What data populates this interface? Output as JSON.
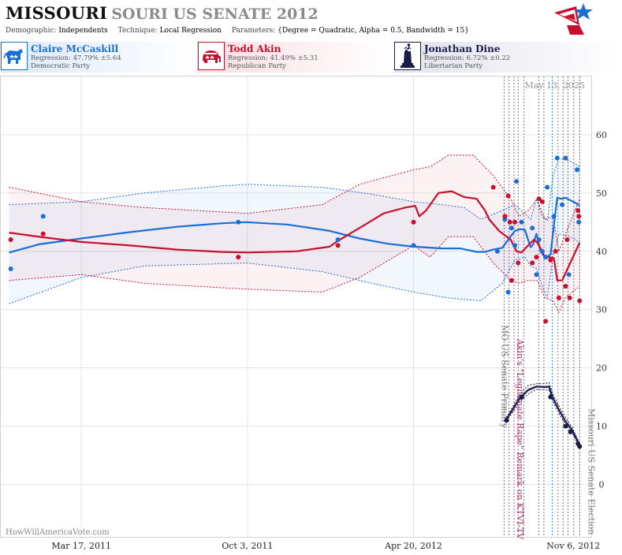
{
  "header": {
    "title_main": "MISSOURI",
    "title_rest": "SOURI US SENATE 2012",
    "demographic_label": "Demographic:",
    "demographic_value": "Independents",
    "technique_label": "Technique:",
    "technique_value": "Local Regression",
    "parameters_label": "Parameters:",
    "parameters_value": "{Degree = Quadratic, Alpha = 0.5, Bandwidth = 15}"
  },
  "candidates": [
    {
      "name": "Claire McCaskill",
      "regression": "Regression: 47.79% ±5.64",
      "party": "Democratic Party",
      "color": "#1a6fd6",
      "icon": "donkey-icon"
    },
    {
      "name": "Todd Akin",
      "regression": "Regression: 41.49% ±5.31",
      "party": "Republican Party",
      "color": "#c8102e",
      "icon": "elephant-icon"
    },
    {
      "name": "Jonathan Dine",
      "regression": "Regression: 6.72% ±0.22",
      "party": "Libertarian Party",
      "color": "#1b1b4a",
      "icon": "liberty-statue-icon"
    }
  ],
  "watermark": "HowWillAmericaVote.com",
  "date_stamp": "May 13, 2025",
  "chart_data": {
    "type": "line",
    "x_axis_type": "date",
    "xlim": [
      "2010-12-10",
      "2012-11-20"
    ],
    "ylim": [
      -9,
      70
    ],
    "y_ticks": [
      0,
      10,
      20,
      30,
      40,
      50,
      60
    ],
    "x_ticks": [
      {
        "date": "2011-03-17",
        "label": "Mar 17, 2011"
      },
      {
        "date": "2011-10-03",
        "label": "Oct 3, 2011"
      },
      {
        "date": "2012-04-20",
        "label": "Apr 20, 2012"
      },
      {
        "date": "2012-11-06",
        "label": "Nov 6, 2012"
      }
    ],
    "grid": true,
    "events": [
      {
        "date": "2012-08-07",
        "label": "MO US Senate Primary",
        "color": "#777777"
      },
      {
        "date": "2012-08-19",
        "label": "Akin's \"Legitimate Rape\" Remark on KTVI-TV",
        "color": "#b0306a"
      },
      {
        "date": "2012-11-06",
        "label": "Missouri US Senate Election",
        "color": "#777777"
      }
    ],
    "series": [
      {
        "name": "Claire McCaskill",
        "color": "#1a6fd6",
        "trend": [
          [
            "2010-12-20",
            39.8
          ],
          [
            "2011-01-25",
            41.2
          ],
          [
            "2011-03-17",
            42.2
          ],
          [
            "2011-05-15",
            43.3
          ],
          [
            "2011-07-10",
            44.2
          ],
          [
            "2011-09-01",
            44.8
          ],
          [
            "2011-10-01",
            45.0
          ],
          [
            "2011-11-20",
            44.6
          ],
          [
            "2012-01-10",
            43.5
          ],
          [
            "2012-02-15",
            42.2
          ],
          [
            "2012-03-20",
            41.3
          ],
          [
            "2012-04-20",
            40.8
          ],
          [
            "2012-05-25",
            40.5
          ],
          [
            "2012-06-15",
            40.5
          ],
          [
            "2012-06-25",
            40.2
          ],
          [
            "2012-07-05",
            39.9
          ],
          [
            "2012-07-15",
            39.9
          ],
          [
            "2012-07-25",
            40.3
          ],
          [
            "2012-08-05",
            40.6
          ],
          [
            "2012-08-12",
            42.0
          ],
          [
            "2012-08-20",
            43.5
          ],
          [
            "2012-08-26",
            43.8
          ],
          [
            "2012-09-01",
            43.7
          ],
          [
            "2012-09-05",
            42.0
          ],
          [
            "2012-09-08",
            40.7
          ],
          [
            "2012-09-11",
            41.2
          ],
          [
            "2012-09-15",
            43.0
          ],
          [
            "2012-09-20",
            40.0
          ],
          [
            "2012-09-26",
            38.8
          ],
          [
            "2012-10-02",
            39.5
          ],
          [
            "2012-10-07",
            45.6
          ],
          [
            "2012-10-10",
            49.2
          ],
          [
            "2012-10-15",
            49.0
          ],
          [
            "2012-10-20",
            49.2
          ],
          [
            "2012-10-25",
            48.8
          ],
          [
            "2012-11-01",
            48.3
          ],
          [
            "2012-11-06",
            47.8
          ]
        ],
        "upper": [
          [
            "2010-12-20",
            48.0
          ],
          [
            "2011-03-17",
            48.5
          ],
          [
            "2011-06-01",
            50.0
          ],
          [
            "2011-09-01",
            51.2
          ],
          [
            "2011-10-03",
            51.5
          ],
          [
            "2012-01-01",
            51.0
          ],
          [
            "2012-03-01",
            49.8
          ],
          [
            "2012-04-20",
            48.5
          ],
          [
            "2012-05-25",
            48.0
          ],
          [
            "2012-06-20",
            47.5
          ],
          [
            "2012-07-10",
            45.5
          ],
          [
            "2012-08-05",
            47.0
          ],
          [
            "2012-08-20",
            48.0
          ],
          [
            "2012-09-01",
            46.5
          ],
          [
            "2012-09-08",
            45.5
          ],
          [
            "2012-09-15",
            49.0
          ],
          [
            "2012-09-22",
            46.0
          ],
          [
            "2012-09-28",
            45.2
          ],
          [
            "2012-10-05",
            53.0
          ],
          [
            "2012-10-12",
            56.0
          ],
          [
            "2012-10-25",
            55.5
          ],
          [
            "2012-11-06",
            54.5
          ]
        ],
        "lower": [
          [
            "2010-12-20",
            31.0
          ],
          [
            "2011-03-17",
            35.5
          ],
          [
            "2011-06-01",
            37.5
          ],
          [
            "2011-10-03",
            38.0
          ],
          [
            "2012-01-01",
            36.5
          ],
          [
            "2012-03-01",
            34.5
          ],
          [
            "2012-04-20",
            33.0
          ],
          [
            "2012-06-01",
            32.0
          ],
          [
            "2012-07-10",
            31.5
          ],
          [
            "2012-08-05",
            34.5
          ],
          [
            "2012-08-20",
            38.5
          ],
          [
            "2012-09-01",
            39.0
          ],
          [
            "2012-09-08",
            37.5
          ],
          [
            "2012-09-15",
            37.0
          ],
          [
            "2012-09-22",
            34.0
          ],
          [
            "2012-09-28",
            32.0
          ],
          [
            "2012-10-05",
            39.0
          ],
          [
            "2012-10-12",
            43.0
          ],
          [
            "2012-10-25",
            42.5
          ],
          [
            "2012-11-06",
            41.5
          ]
        ],
        "points": [
          [
            "2010-12-22",
            37.0
          ],
          [
            "2011-01-30",
            46.0
          ],
          [
            "2011-09-22",
            45.0
          ],
          [
            "2012-01-20",
            42.0
          ],
          [
            "2012-04-20",
            41.0
          ],
          [
            "2012-07-30",
            40.0
          ],
          [
            "2012-08-08",
            45.5
          ],
          [
            "2012-08-12",
            33.0
          ],
          [
            "2012-08-16",
            44.0
          ],
          [
            "2012-08-20",
            41.0
          ],
          [
            "2012-08-22",
            52.0
          ],
          [
            "2012-08-28",
            45.0
          ],
          [
            "2012-09-10",
            44.0
          ],
          [
            "2012-09-15",
            36.0
          ],
          [
            "2012-09-18",
            42.0
          ],
          [
            "2012-09-22",
            40.0
          ],
          [
            "2012-09-26",
            39.0
          ],
          [
            "2012-09-28",
            51.0
          ],
          [
            "2012-10-06",
            46.0
          ],
          [
            "2012-10-10",
            56.0
          ],
          [
            "2012-10-16",
            48.0
          ],
          [
            "2012-10-20",
            56.0
          ],
          [
            "2012-10-24",
            36.0
          ],
          [
            "2012-11-03",
            54.0
          ],
          [
            "2012-11-05",
            45.0
          ]
        ]
      },
      {
        "name": "Todd Akin",
        "color": "#c8102e",
        "trend": [
          [
            "2010-12-20",
            43.2
          ],
          [
            "2011-01-30",
            42.4
          ],
          [
            "2011-03-17",
            41.6
          ],
          [
            "2011-05-15",
            41.0
          ],
          [
            "2011-07-10",
            40.3
          ],
          [
            "2011-09-01",
            39.9
          ],
          [
            "2011-10-03",
            39.8
          ],
          [
            "2011-12-01",
            40.0
          ],
          [
            "2012-01-10",
            40.8
          ],
          [
            "2012-01-20",
            41.8
          ],
          [
            "2012-02-15",
            44.0
          ],
          [
            "2012-03-15",
            46.5
          ],
          [
            "2012-04-10",
            47.5
          ],
          [
            "2012-04-22",
            47.8
          ],
          [
            "2012-04-27",
            46.0
          ],
          [
            "2012-05-05",
            47.0
          ],
          [
            "2012-05-20",
            50.0
          ],
          [
            "2012-06-05",
            50.3
          ],
          [
            "2012-06-20",
            49.3
          ],
          [
            "2012-07-05",
            49.0
          ],
          [
            "2012-07-15",
            47.0
          ],
          [
            "2012-07-20",
            45.5
          ],
          [
            "2012-08-01",
            43.5
          ],
          [
            "2012-08-15",
            42.0
          ],
          [
            "2012-08-22",
            40.0
          ],
          [
            "2012-08-28",
            39.8
          ],
          [
            "2012-09-05",
            41.0
          ],
          [
            "2012-09-12",
            42.0
          ],
          [
            "2012-09-16",
            41.5
          ],
          [
            "2012-09-20",
            40.5
          ],
          [
            "2012-09-25",
            39.0
          ],
          [
            "2012-10-01",
            39.0
          ],
          [
            "2012-10-06",
            38.8
          ],
          [
            "2012-10-10",
            35.0
          ],
          [
            "2012-10-16",
            35.0
          ],
          [
            "2012-10-25",
            37.8
          ],
          [
            "2012-11-06",
            41.5
          ]
        ],
        "upper": [
          [
            "2010-12-20",
            51.0
          ],
          [
            "2011-03-17",
            48.5
          ],
          [
            "2011-06-01",
            47.5
          ],
          [
            "2011-10-03",
            46.5
          ],
          [
            "2012-01-01",
            48.0
          ],
          [
            "2012-02-15",
            51.5
          ],
          [
            "2012-04-20",
            54.0
          ],
          [
            "2012-05-10",
            54.5
          ],
          [
            "2012-06-01",
            56.5
          ],
          [
            "2012-07-01",
            56.5
          ],
          [
            "2012-07-25",
            53.0
          ],
          [
            "2012-08-15",
            49.0
          ],
          [
            "2012-08-25",
            46.0
          ],
          [
            "2012-09-05",
            47.0
          ],
          [
            "2012-09-16",
            49.0
          ],
          [
            "2012-09-25",
            45.5
          ],
          [
            "2012-10-05",
            46.0
          ],
          [
            "2012-10-12",
            40.0
          ],
          [
            "2012-10-20",
            43.0
          ],
          [
            "2012-11-06",
            49.0
          ]
        ],
        "lower": [
          [
            "2010-12-20",
            35.0
          ],
          [
            "2011-03-17",
            36.0
          ],
          [
            "2011-06-01",
            34.5
          ],
          [
            "2011-10-03",
            33.5
          ],
          [
            "2012-01-01",
            33.0
          ],
          [
            "2012-02-15",
            35.5
          ],
          [
            "2012-04-20",
            41.0
          ],
          [
            "2012-05-10",
            39.0
          ],
          [
            "2012-06-01",
            42.5
          ],
          [
            "2012-07-01",
            42.5
          ],
          [
            "2012-07-25",
            38.0
          ],
          [
            "2012-08-15",
            35.0
          ],
          [
            "2012-08-25",
            34.5
          ],
          [
            "2012-09-05",
            35.0
          ],
          [
            "2012-09-16",
            35.0
          ],
          [
            "2012-09-25",
            32.0
          ],
          [
            "2012-10-05",
            31.5
          ],
          [
            "2012-10-12",
            29.5
          ],
          [
            "2012-10-20",
            32.0
          ],
          [
            "2012-11-06",
            34.0
          ]
        ],
        "points": [
          [
            "2010-12-22",
            42.0
          ],
          [
            "2011-01-30",
            43.0
          ],
          [
            "2011-09-22",
            39.0
          ],
          [
            "2012-01-20",
            41.0
          ],
          [
            "2012-04-20",
            45.0
          ],
          [
            "2012-07-25",
            51.0
          ],
          [
            "2012-08-08",
            46.0
          ],
          [
            "2012-08-12",
            49.5
          ],
          [
            "2012-08-14",
            45.0
          ],
          [
            "2012-08-16",
            35.0
          ],
          [
            "2012-08-20",
            45.0
          ],
          [
            "2012-08-24",
            38.0
          ],
          [
            "2012-09-10",
            38.0
          ],
          [
            "2012-09-15",
            39.0
          ],
          [
            "2012-09-18",
            49.0
          ],
          [
            "2012-09-22",
            48.5
          ],
          [
            "2012-09-26",
            28.0
          ],
          [
            "2012-10-02",
            38.5
          ],
          [
            "2012-10-08",
            40.0
          ],
          [
            "2012-10-12",
            32.0
          ],
          [
            "2012-10-20",
            34.0
          ],
          [
            "2012-10-22",
            42.0
          ],
          [
            "2012-10-25",
            32.0
          ],
          [
            "2012-11-04",
            47.0
          ],
          [
            "2012-11-05",
            46.0
          ],
          [
            "2012-11-06",
            31.5
          ]
        ]
      },
      {
        "name": "Jonathan Dine",
        "color": "#1b1b4a",
        "trend": [
          [
            "2012-08-10",
            11.2
          ],
          [
            "2012-08-18",
            13.0
          ],
          [
            "2012-08-26",
            14.8
          ],
          [
            "2012-09-05",
            16.2
          ],
          [
            "2012-09-15",
            16.8
          ],
          [
            "2012-09-25",
            16.7
          ],
          [
            "2012-09-30",
            16.8
          ],
          [
            "2012-10-05",
            14.8
          ],
          [
            "2012-10-12",
            12.8
          ],
          [
            "2012-10-20",
            10.8
          ],
          [
            "2012-10-28",
            9.3
          ],
          [
            "2012-11-06",
            6.7
          ]
        ],
        "upper": [
          [
            "2012-08-10",
            11.5
          ],
          [
            "2012-08-18",
            13.5
          ],
          [
            "2012-08-26",
            15.5
          ],
          [
            "2012-09-05",
            17.0
          ],
          [
            "2012-09-15",
            17.3
          ],
          [
            "2012-09-25",
            17.3
          ],
          [
            "2012-09-30",
            17.5
          ],
          [
            "2012-10-05",
            15.5
          ],
          [
            "2012-10-12",
            13.5
          ],
          [
            "2012-10-20",
            11.5
          ],
          [
            "2012-10-28",
            9.8
          ],
          [
            "2012-11-06",
            7.0
          ]
        ],
        "lower": [
          [
            "2012-08-10",
            10.9
          ],
          [
            "2012-08-18",
            12.5
          ],
          [
            "2012-08-26",
            14.2
          ],
          [
            "2012-09-05",
            15.5
          ],
          [
            "2012-09-15",
            16.3
          ],
          [
            "2012-09-25",
            16.2
          ],
          [
            "2012-09-30",
            16.2
          ],
          [
            "2012-10-05",
            14.2
          ],
          [
            "2012-10-12",
            12.2
          ],
          [
            "2012-10-20",
            10.2
          ],
          [
            "2012-10-28",
            8.8
          ],
          [
            "2012-11-06",
            6.4
          ]
        ],
        "points": [
          [
            "2012-08-10",
            11.0
          ],
          [
            "2012-08-28",
            15.0
          ],
          [
            "2012-10-02",
            15.0
          ],
          [
            "2012-10-20",
            10.0
          ],
          [
            "2012-10-26",
            9.0
          ],
          [
            "2012-11-04",
            7.0
          ],
          [
            "2012-11-06",
            6.5
          ]
        ]
      }
    ]
  }
}
